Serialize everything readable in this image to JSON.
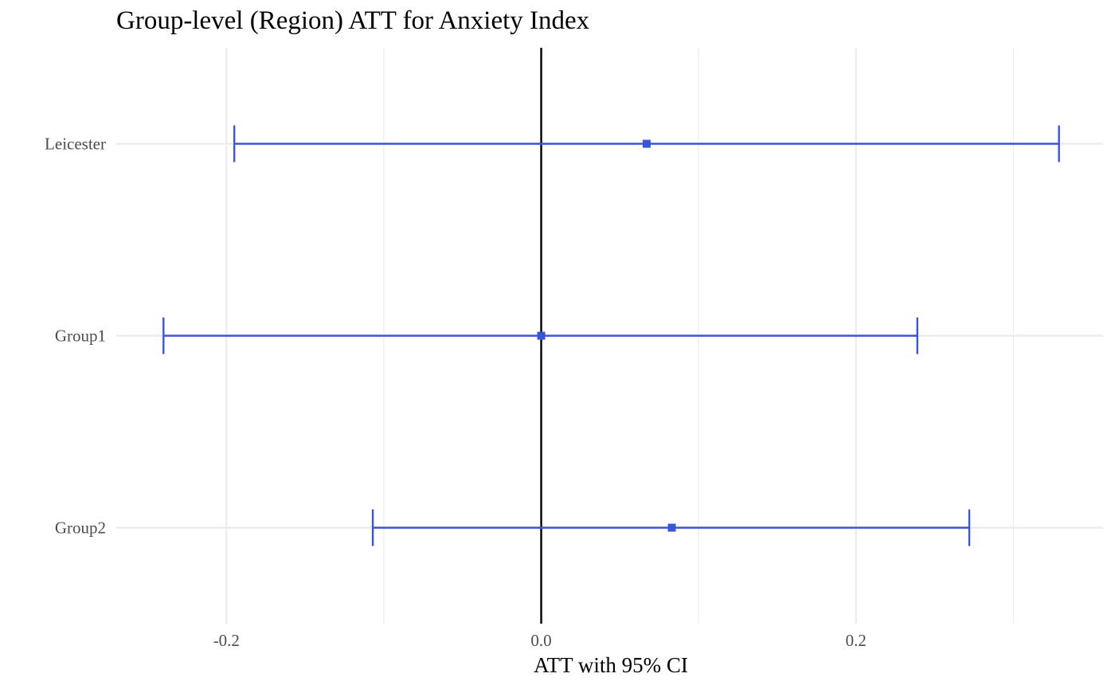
{
  "chart_data": {
    "type": "forest",
    "title": "Group-level (Region) ATT for Anxiety Index",
    "xlabel": "ATT with 95% CI",
    "ylabel": "",
    "xlim": [
      -0.27,
      0.357
    ],
    "x_ticks": [
      -0.2,
      0.0,
      0.2
    ],
    "x_tick_labels": [
      "-0.2",
      "0.0",
      "0.2"
    ],
    "reference_line": 0.0,
    "grid": true,
    "colors": {
      "estimate": "#3a55d6",
      "reference": "#000000",
      "grid": "#ebebeb"
    },
    "series": [
      {
        "category": "Leicester",
        "estimate": 0.067,
        "ci_low": -0.195,
        "ci_high": 0.329
      },
      {
        "category": "Group1",
        "estimate": 0.0,
        "ci_low": -0.24,
        "ci_high": 0.239
      },
      {
        "category": "Group2",
        "estimate": 0.083,
        "ci_low": -0.107,
        "ci_high": 0.272
      }
    ]
  }
}
